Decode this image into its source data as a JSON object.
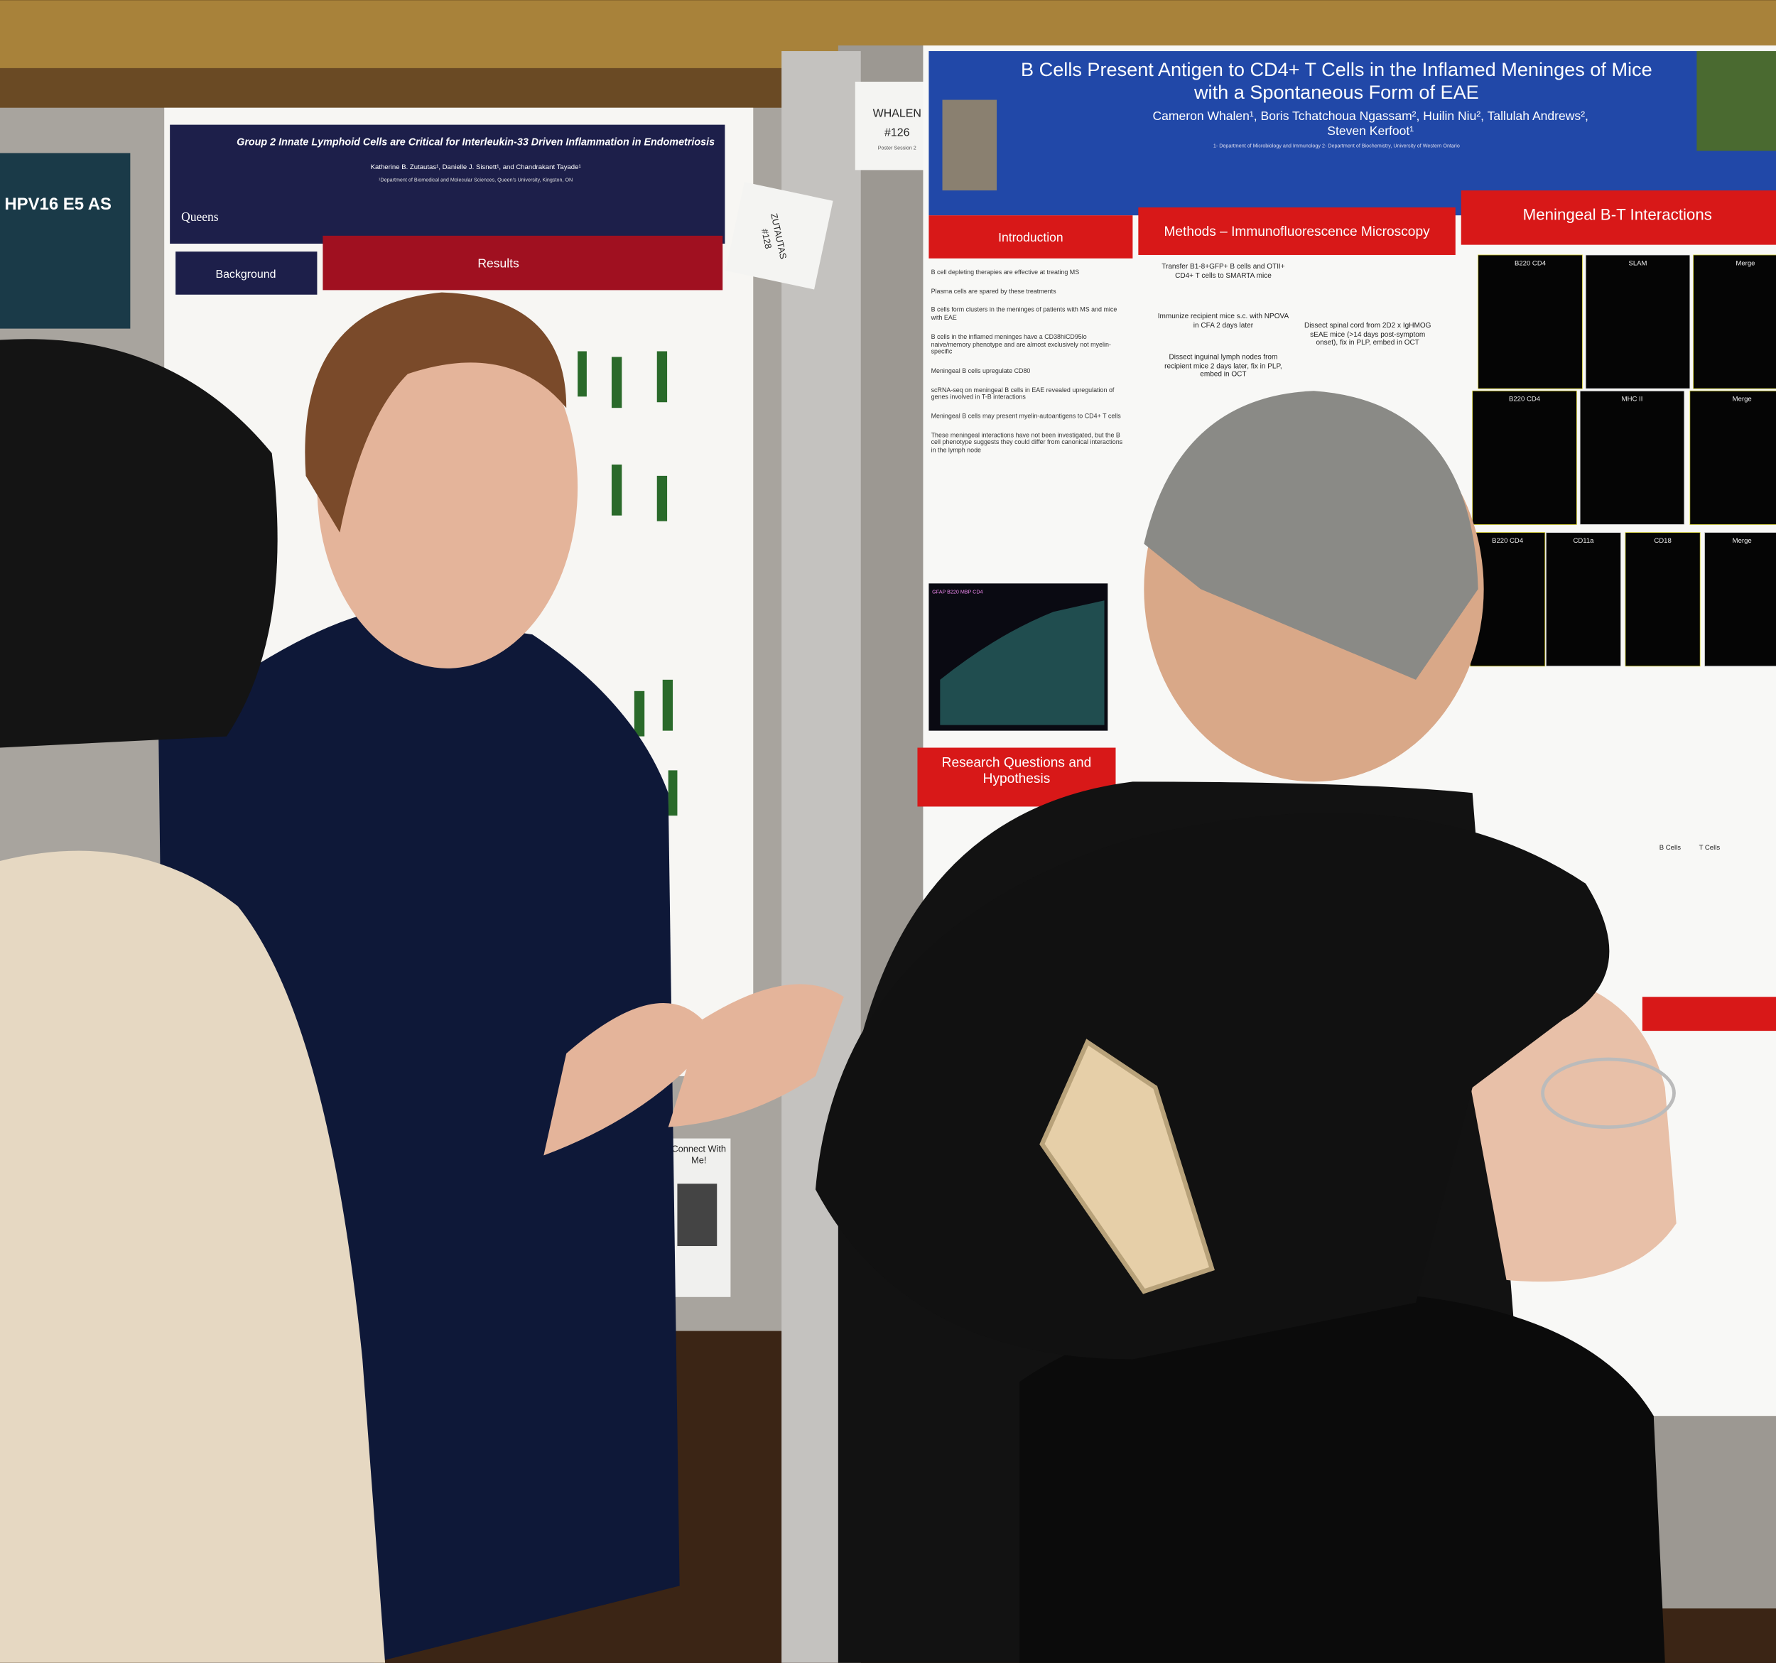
{
  "far_left_poster": {
    "title": "HPV16 E5 AS"
  },
  "left_poster": {
    "logo": "Queens",
    "title": "Group 2 Innate Lymphoid Cells are Critical for Interleukin-33 Driven Inflammation in Endometriosis",
    "authors": "Katherine B. Zutautas¹, Danielle J. Sisnett¹, and Chandrakant Tayade¹",
    "affiliation": "¹Department of Biomedical and Molecular Sciences, Queen's University, Kingston, ON",
    "sections": [
      "Background",
      "Results"
    ],
    "qr_caption": "Connect With Me!"
  },
  "left_tag": {
    "name": "ZUTAUTAS",
    "number": "#128"
  },
  "right_tag": {
    "name": "WHALEN",
    "number": "#126",
    "session": "Poster Session 2"
  },
  "right_poster": {
    "title": "B Cells Present Antigen to CD4+ T Cells in the Inflamed Meninges of Mice with a Spontaneous Form of EAE",
    "authors": "Cameron Whalen¹, Boris Tchatchoua Ngassam², Huilin Niu², Tallulah Andrews², Steven Kerfoot¹",
    "affiliation": "1- Department of Microbiology and Immunology 2- Department of Biochemistry, University of Western Ontario",
    "sections": [
      "Introduction",
      "Methods – Immunofluorescence Microscopy",
      "Meningeal B-T Interactions",
      "Research Questions and Hypothesis"
    ],
    "intro_bullets": [
      "B cell depleting therapies are effective at treating MS",
      "Plasma cells are spared by these treatments",
      "B cells form clusters in the meninges of patients with MS and mice with EAE",
      "B cells in the inflamed meninges have a CD38hiCD95lo naive/memory phenotype and are almost exclusively not myelin-specific",
      "Meningeal B cells upregulate CD80",
      "scRNA-seq on meningeal B cells in EAE revealed upregulation of genes involved in T-B interactions",
      "Meningeal B cells may present myelin-autoantigens to CD4+ T cells",
      "These meningeal interactions have not been investigated, but the B cell phenotype suggests they could differ from canonical interactions in the lymph node"
    ],
    "methods_steps": [
      "Transfer B1-8+GFP+ B cells and OTII+ CD4+ T cells to SMARTA mice",
      "Immunize recipient mice s.c. with NPOVA in CFA 2 days later",
      "Dissect inguinal lymph nodes from recipient mice 2 days later, fix in PLP, embed in OCT",
      "Dissect spinal cord from 2D2 x IgHMOG sEAE mice (>14 days post-symptom onset), fix in PLP, embed in OCT"
    ],
    "image_label": "GFAP B220 MBP CD4",
    "panel_labels": [
      "B220 CD4",
      "SLAM",
      "Merge",
      "B220 CD4",
      "MHC II",
      "Merge",
      "B220 CD4",
      "CD11a",
      "CD18",
      "Merge"
    ],
    "plot_x_labels": [
      "B Cells",
      "T Cells"
    ]
  }
}
